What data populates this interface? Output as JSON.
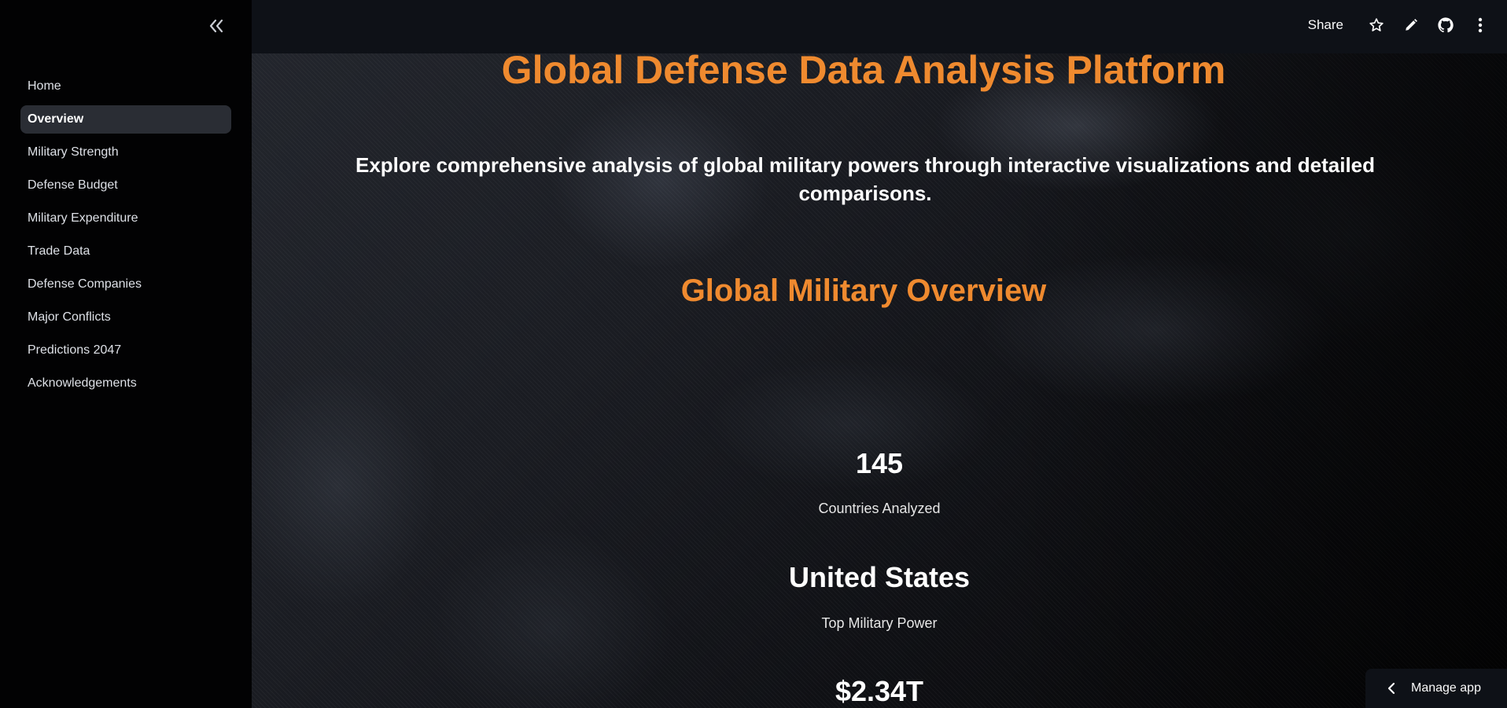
{
  "sidebar": {
    "collapse_icon": "double-chevron-left-icon",
    "items": [
      {
        "label": "Home"
      },
      {
        "label": "Overview",
        "active": true
      },
      {
        "label": "Military Strength"
      },
      {
        "label": "Defense Budget"
      },
      {
        "label": "Military Expenditure"
      },
      {
        "label": "Trade Data"
      },
      {
        "label": "Defense Companies"
      },
      {
        "label": "Major Conflicts"
      },
      {
        "label": "Predictions 2047"
      },
      {
        "label": "Acknowledgements"
      }
    ]
  },
  "header": {
    "share_label": "Share",
    "icons": [
      "star-icon",
      "pencil-icon",
      "github-icon",
      "more-vertical-icon"
    ]
  },
  "main": {
    "title": "Global Defense Data Analysis Platform",
    "subtitle": "Explore comprehensive analysis of global military powers through interactive visualizations and detailed comparisons.",
    "section_title": "Global Military Overview",
    "metrics": [
      {
        "value": "145",
        "label": "Countries Analyzed"
      },
      {
        "value": "United States",
        "label": "Top Military Power"
      },
      {
        "value": "$2.34T"
      }
    ]
  },
  "manage_app": {
    "label": "Manage app"
  },
  "colors": {
    "accent": "#ef8a2f",
    "sidebar_bg": "#020203",
    "header_bg": "#0e1117",
    "active_item_bg": "#2a2d34"
  }
}
